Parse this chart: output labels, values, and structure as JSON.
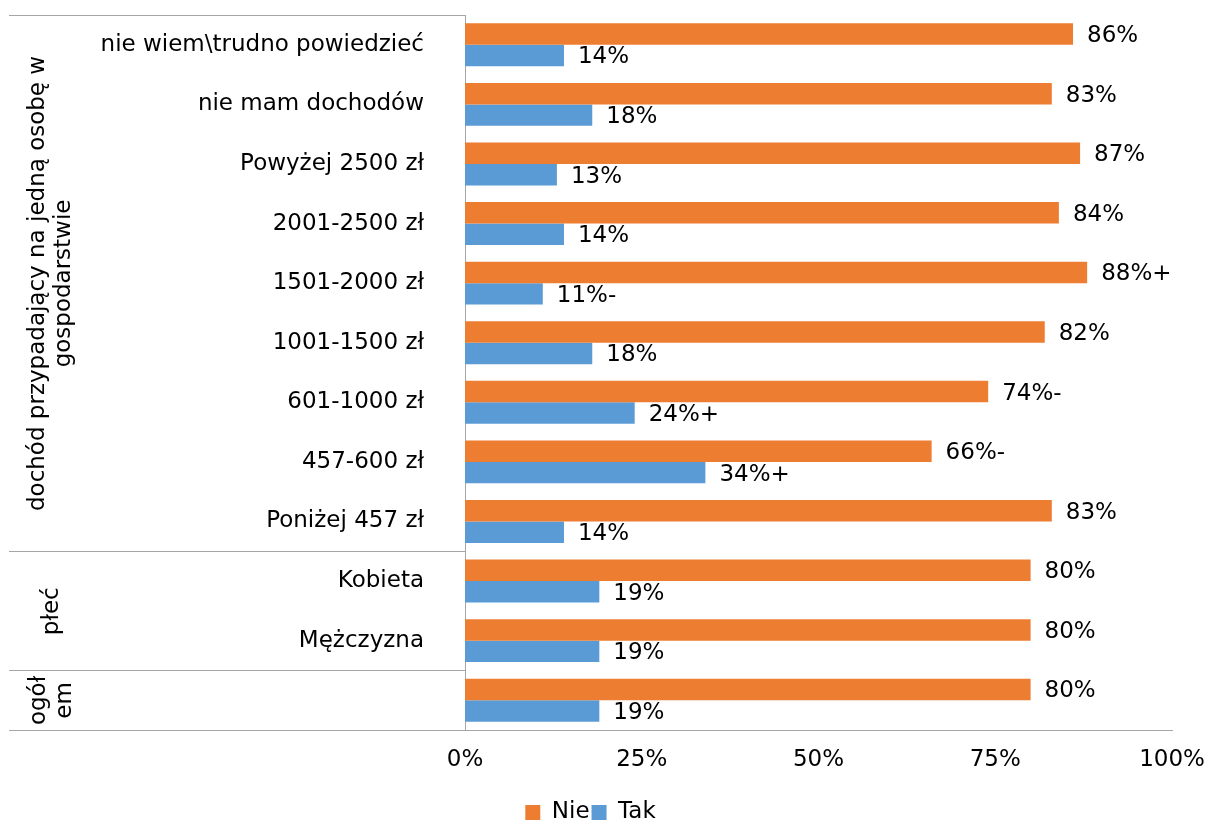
{
  "chart_data": {
    "type": "bar",
    "orientation": "horizontal",
    "categories": [
      "nie wiem\\trudno powiedzieć",
      "nie mam dochodów",
      "Powyżej 2500 zł",
      "2001-2500 zł",
      "1501-2000 zł",
      "1001-1500 zł",
      "601-1000 zł",
      "457-600 zł",
      "Poniżej 457 zł",
      "Kobieta",
      "Mężczyzna",
      null
    ],
    "series": [
      {
        "name": "Nie",
        "color": "#ed7d31",
        "values": [
          86,
          83,
          87,
          84,
          88,
          82,
          74,
          66,
          83,
          80,
          80,
          80
        ],
        "value_labels": [
          "86%",
          "83%",
          "87%",
          "84%",
          "88%+",
          "82%",
          "74%-",
          "66%-",
          "83%",
          "80%",
          "80%",
          "80%"
        ]
      },
      {
        "name": "Tak",
        "color": "#5b9bd5",
        "values": [
          14,
          18,
          13,
          14,
          11,
          18,
          24,
          34,
          14,
          19,
          19,
          19
        ],
        "value_labels": [
          "14%",
          "18%",
          "13%",
          "14%",
          "11%-",
          "18%",
          "24%+",
          "34%+",
          "14%",
          "19%",
          "19%",
          "19%"
        ]
      }
    ],
    "xlim": [
      0,
      100
    ],
    "xticks": [
      {
        "value": 0,
        "label": "0%"
      },
      {
        "value": 25,
        "label": "25%"
      },
      {
        "value": 50,
        "label": "50%"
      },
      {
        "value": 75,
        "label": "75%"
      },
      {
        "value": 100,
        "label": "100%"
      }
    ],
    "annotations": [
      "dochód przypadający na jedną osobę w gospodarstwie",
      "płeć",
      "ogółem"
    ],
    "legend": "bottom"
  }
}
